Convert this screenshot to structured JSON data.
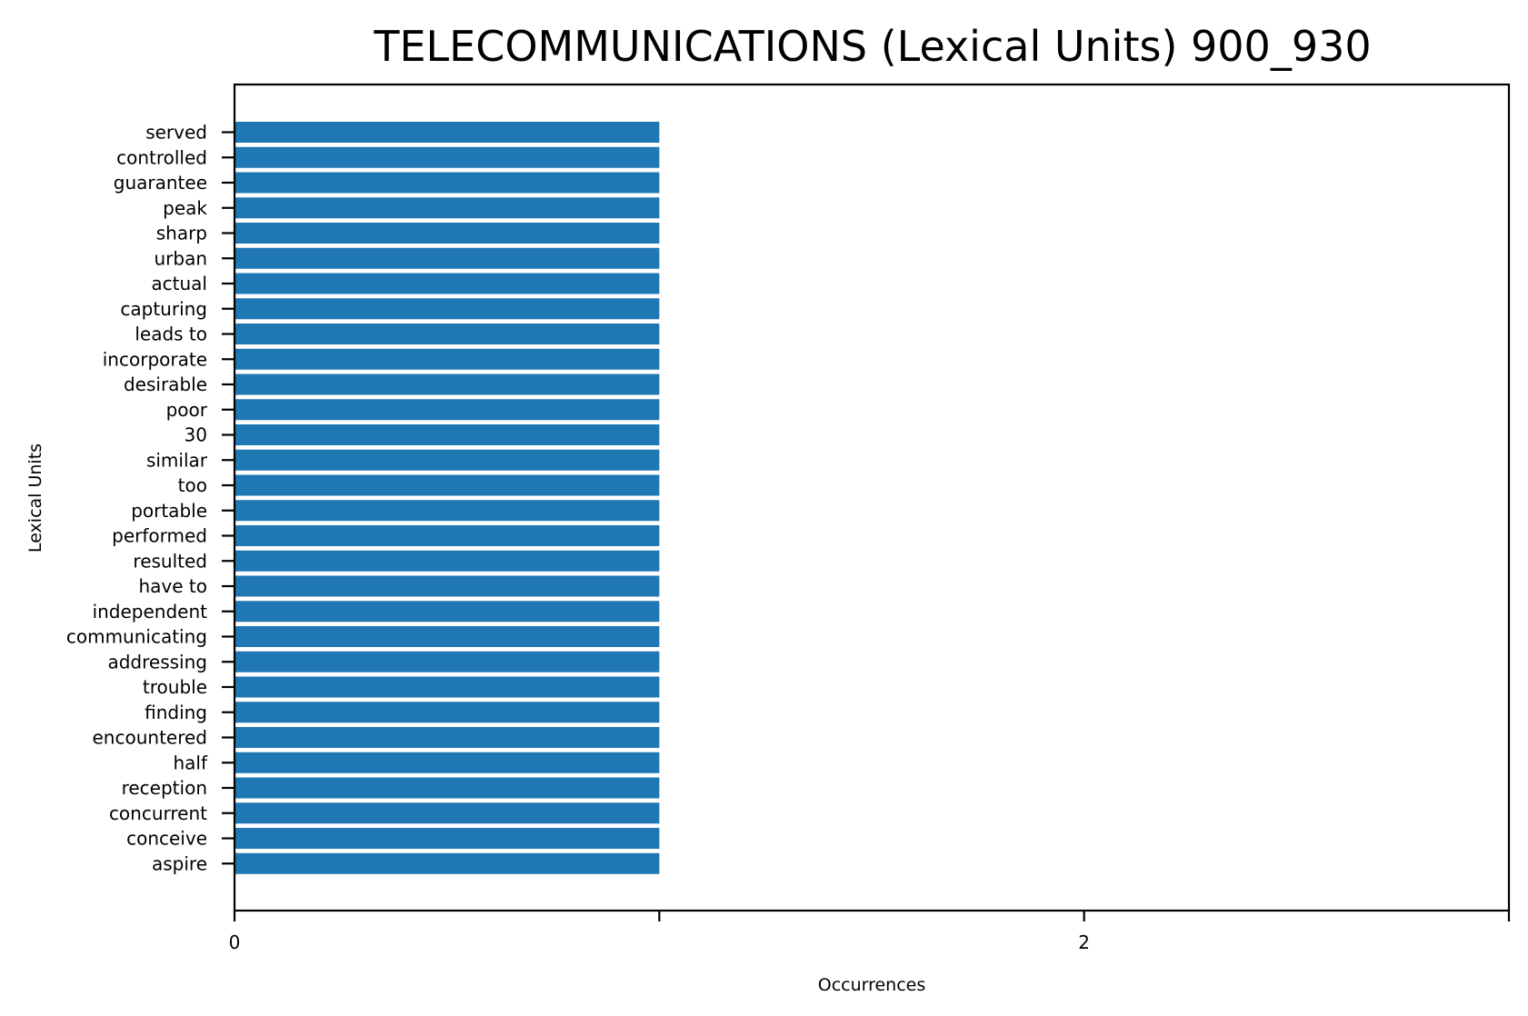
{
  "chart_data": {
    "type": "bar",
    "orientation": "horizontal",
    "title": "TELECOMMUNICATIONS (Lexical Units) 900_930",
    "xlabel": "Occurrences",
    "ylabel": "Lexical Units",
    "xlim": [
      0,
      3
    ],
    "x_ticks": [
      0,
      1,
      2,
      3
    ],
    "x_tick_labels": [
      "0",
      "",
      "2",
      ""
    ],
    "grid": false,
    "bar_color": "#1f77b4",
    "categories": [
      "served",
      "controlled",
      "guarantee",
      "peak",
      "sharp",
      "urban",
      "actual",
      "capturing",
      "leads to",
      "incorporate",
      "desirable",
      "poor",
      "30",
      "similar",
      "too",
      "portable",
      "performed",
      "resulted",
      "have to",
      "independent",
      "communicating",
      "addressing",
      "trouble",
      "finding",
      "encountered",
      "half",
      "reception",
      "concurrent",
      "conceive",
      "aspire"
    ],
    "values": [
      1,
      1,
      1,
      1,
      1,
      1,
      1,
      1,
      1,
      1,
      1,
      1,
      1,
      1,
      1,
      1,
      1,
      1,
      1,
      1,
      1,
      1,
      1,
      1,
      1,
      1,
      1,
      1,
      1,
      1
    ]
  }
}
